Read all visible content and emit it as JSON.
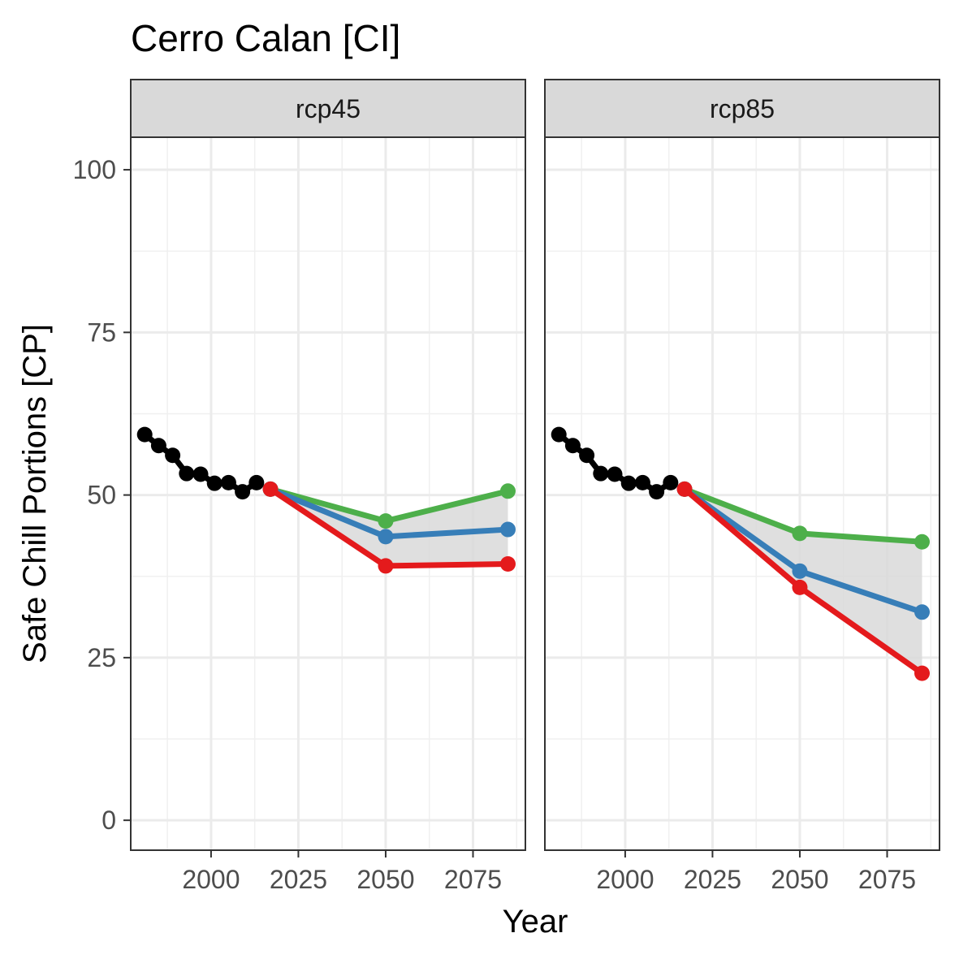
{
  "chart_data": {
    "type": "line",
    "title": "Cerro Calan [CI]",
    "xlabel": "Year",
    "ylabel": "Safe Chill Portions [CP]",
    "xlim": [
      1977,
      2090
    ],
    "ylim": [
      -4.6,
      105
    ],
    "x_ticks": [
      2000,
      2025,
      2050,
      2075
    ],
    "x_tick_labels": [
      "2000",
      "2025",
      "2050",
      "2075"
    ],
    "y_ticks": [
      0,
      25,
      50,
      75,
      100
    ],
    "y_tick_labels": [
      "0",
      "25",
      "50",
      "75",
      "100"
    ],
    "grid": true,
    "legend": "none",
    "colors": {
      "historic": "#000000",
      "low": "#e41a1c",
      "mid": "#377eb8",
      "high": "#4daf4a",
      "band": "#d9d9d9"
    },
    "panels": [
      {
        "strip": "rcp45",
        "historic": {
          "x": [
            1981,
            1985,
            1989,
            1993,
            1997,
            2001,
            2005,
            2009,
            2013
          ],
          "y": [
            59.3,
            57.6,
            56.1,
            53.3,
            53.2,
            51.8,
            51.9,
            50.5,
            51.9
          ]
        },
        "scenarios": {
          "x": [
            2017,
            2050,
            2085
          ],
          "low": [
            50.9,
            39.1,
            39.4
          ],
          "mid": [
            50.9,
            43.6,
            44.7
          ],
          "high": [
            50.9,
            46.0,
            50.6
          ]
        }
      },
      {
        "strip": "rcp85",
        "historic": {
          "x": [
            1981,
            1985,
            1989,
            1993,
            1997,
            2001,
            2005,
            2009,
            2013
          ],
          "y": [
            59.3,
            57.6,
            56.1,
            53.3,
            53.2,
            51.8,
            51.9,
            50.5,
            51.9
          ]
        },
        "scenarios": {
          "x": [
            2017,
            2050,
            2085
          ],
          "low": [
            50.9,
            35.8,
            22.6
          ],
          "mid": [
            50.9,
            38.3,
            32.0
          ],
          "high": [
            50.9,
            44.1,
            42.8
          ]
        }
      }
    ]
  }
}
